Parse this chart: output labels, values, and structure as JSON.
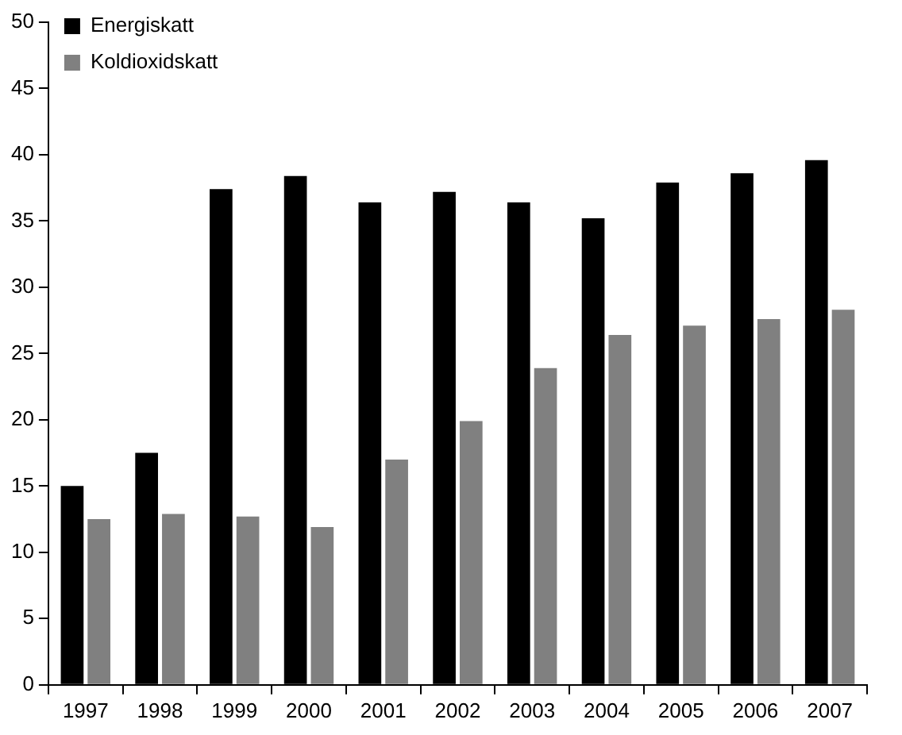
{
  "chart_data": {
    "type": "bar",
    "categories": [
      "1997",
      "1998",
      "1999",
      "2000",
      "2001",
      "2002",
      "2003",
      "2004",
      "2005",
      "2006",
      "2007"
    ],
    "series": [
      {
        "name": "Energiskatt",
        "color": "#000000",
        "values": [
          15.0,
          17.5,
          37.4,
          38.4,
          36.4,
          37.2,
          36.4,
          35.2,
          37.9,
          38.6,
          39.6
        ]
      },
      {
        "name": "Koldioxidskatt",
        "color": "#808080",
        "values": [
          12.5,
          12.9,
          12.7,
          11.9,
          17.0,
          19.9,
          23.9,
          26.4,
          27.1,
          27.6,
          28.3
        ]
      }
    ],
    "ylim": [
      0,
      50
    ],
    "yticks": [
      0,
      5,
      10,
      15,
      20,
      25,
      30,
      35,
      40,
      45,
      50
    ],
    "grid": false,
    "legend": "top left"
  }
}
